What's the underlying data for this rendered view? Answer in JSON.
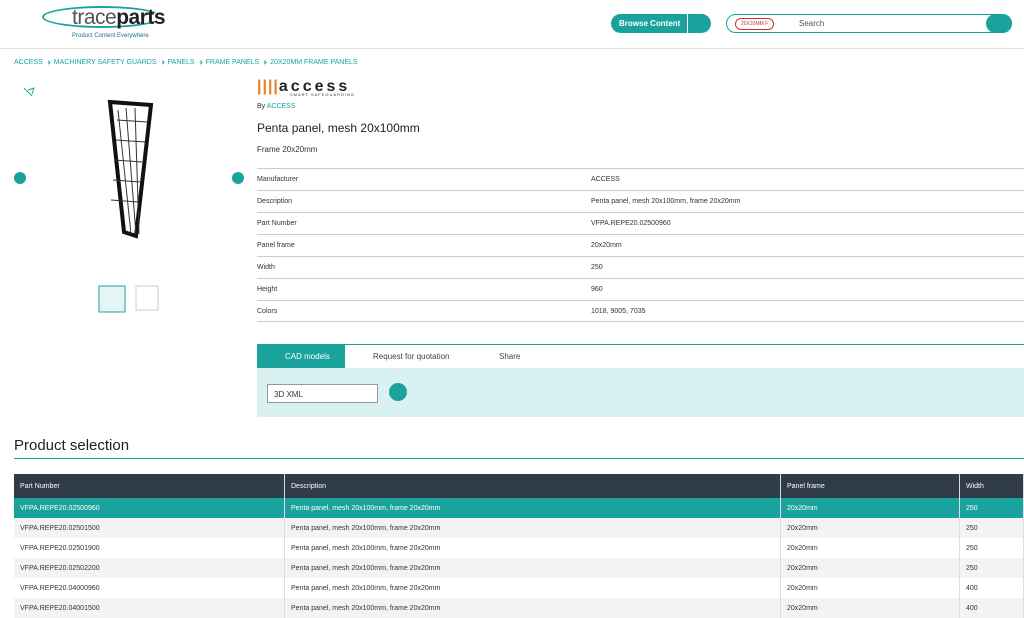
{
  "header": {
    "logo_left": "trace",
    "logo_right": "parts",
    "tagline": "Product Content Everywhere",
    "browse": "Browse Content",
    "search_tag": "20X20MM F",
    "search_placeholder": "Search"
  },
  "breadcrumb": [
    "ACCESS",
    "MACHINERY SAFETY GUARDS",
    "PANELS",
    "FRAME PANELS",
    "20X20MM FRAME PANELS"
  ],
  "product": {
    "brand": "access",
    "brand_tagline": "SMART SAFEGUARDING",
    "by": "By",
    "by_link": "ACCESS",
    "title": "Penta panel, mesh 20x100mm",
    "subtitle": "Frame 20x20mm",
    "specs": [
      [
        "Manufacturer",
        "ACCESS"
      ],
      [
        "Description",
        "Penta panel, mesh 20x100mm, frame 20x20mm"
      ],
      [
        "Part Number",
        "VFPA.REPE20.02500960"
      ],
      [
        "Panel frame",
        "20x20mm"
      ],
      [
        "Width",
        "250"
      ],
      [
        "Height",
        "960"
      ],
      [
        "Colors",
        "1018, 9005, 7035"
      ]
    ]
  },
  "tabs": [
    "CAD models",
    "Request for quotation",
    "Share"
  ],
  "format": "3D XML",
  "selection": {
    "heading": "Product selection",
    "columns": [
      "Part Number",
      "Description",
      "Panel frame",
      "Width"
    ],
    "rows": [
      [
        "VFPA.REPE20.02500960",
        "Penta panel, mesh 20x100mm, frame 20x20mm",
        "20x20mm",
        "250"
      ],
      [
        "VFPA.REPE20.02501500",
        "Penta panel, mesh 20x100mm, frame 20x20mm",
        "20x20mm",
        "250"
      ],
      [
        "VFPA.REPE20.02501900",
        "Penta panel, mesh 20x100mm, frame 20x20mm",
        "20x20mm",
        "250"
      ],
      [
        "VFPA.REPE20.02502200",
        "Penta panel, mesh 20x100mm, frame 20x20mm",
        "20x20mm",
        "250"
      ],
      [
        "VFPA.REPE20.04000960",
        "Penta panel, mesh 20x100mm, frame 20x20mm",
        "20x20mm",
        "400"
      ],
      [
        "VFPA.REPE20.04001500",
        "Penta panel, mesh 20x100mm, frame 20x20mm",
        "20x20mm",
        "400"
      ]
    ]
  }
}
